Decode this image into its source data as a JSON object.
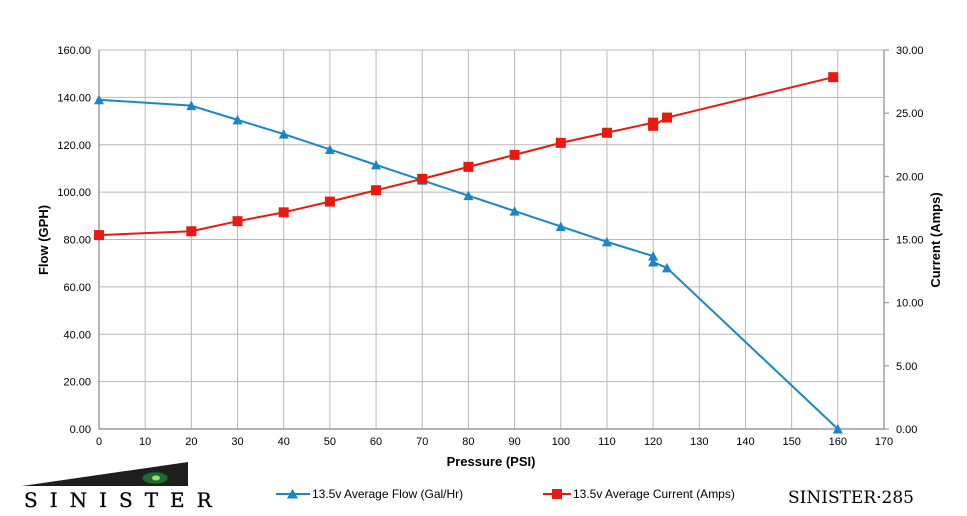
{
  "chart_data": {
    "type": "line",
    "xlabel": "Pressure (PSI)",
    "ylabel_left": "Flow (GPH)",
    "ylabel_right": "Current (Amps)",
    "xlim": [
      0,
      170
    ],
    "ylim_left": [
      0,
      160
    ],
    "ylim_right": [
      0,
      30
    ],
    "x_ticks": [
      0,
      10,
      20,
      30,
      40,
      50,
      60,
      70,
      80,
      90,
      100,
      110,
      120,
      130,
      140,
      150,
      160,
      170
    ],
    "x_tick_labels": [
      "0",
      "10",
      "20",
      "30",
      "40",
      "50",
      "60",
      "70",
      "80",
      "90",
      "100",
      "110",
      "120",
      "130",
      "140",
      "150",
      "160",
      "170"
    ],
    "y_left_ticks": [
      0,
      20,
      40,
      60,
      80,
      100,
      120,
      140,
      160
    ],
    "y_left_tick_labels": [
      "0.00",
      "20.00",
      "40.00",
      "60.00",
      "80.00",
      "100.00",
      "120.00",
      "140.00",
      "160.00"
    ],
    "y_right_ticks": [
      0,
      5,
      10,
      15,
      20,
      25,
      30
    ],
    "y_right_tick_labels": [
      "0.00",
      "5.00",
      "10.00",
      "15.00",
      "20.00",
      "25.00",
      "30.00"
    ],
    "grid": true,
    "legend_position": "bottom",
    "series": [
      {
        "name": "13.5v Average Flow (Gal/Hr)",
        "axis": "left",
        "marker": "triangle",
        "color": "#1a86c8",
        "points": [
          [
            0,
            139
          ],
          [
            20,
            136.5
          ],
          [
            30,
            130.5
          ],
          [
            40,
            124.5
          ],
          [
            50,
            118
          ],
          [
            60,
            111.5
          ],
          [
            70,
            105
          ],
          [
            80,
            98.5
          ],
          [
            90,
            92
          ],
          [
            100,
            85.5
          ],
          [
            110,
            79
          ],
          [
            120,
            73
          ],
          [
            120,
            70.5
          ],
          [
            123,
            68
          ],
          [
            160,
            0
          ]
        ]
      },
      {
        "name": "13.5v Average Current (Amps)",
        "axis": "right",
        "marker": "square",
        "color": "#e8190f",
        "points": [
          [
            0,
            15.35
          ],
          [
            20,
            15.65
          ],
          [
            30,
            16.45
          ],
          [
            40,
            17.15
          ],
          [
            50,
            18
          ],
          [
            60,
            18.9
          ],
          [
            70,
            19.8
          ],
          [
            80,
            20.75
          ],
          [
            90,
            21.7
          ],
          [
            100,
            22.65
          ],
          [
            110,
            23.45
          ],
          [
            120,
            24.25
          ],
          [
            120,
            24.0
          ],
          [
            123,
            24.65
          ],
          [
            159,
            27.85
          ]
        ]
      }
    ]
  },
  "branding": {
    "left_logo_text": "SINISTER",
    "right_text": "SINISTER·285"
  }
}
